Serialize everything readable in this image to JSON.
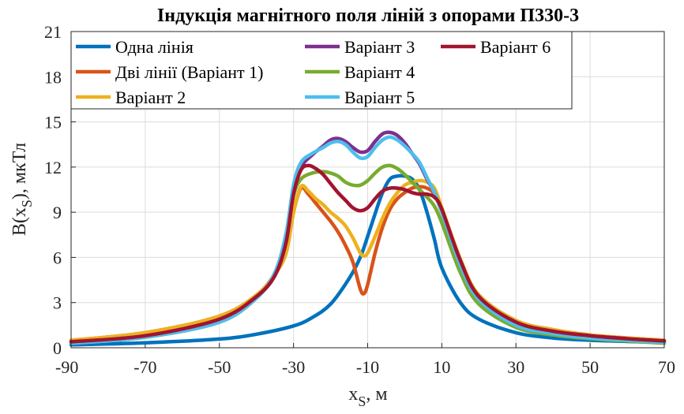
{
  "chart_data": {
    "type": "line",
    "title": "Індукція магнітного поля ліній з опорами П330-3",
    "xlabel": {
      "main": "x",
      "sub": "S",
      "rest": ", м"
    },
    "ylabel": {
      "main": "B(x",
      "sub": "S",
      "rest": "), мкТл"
    },
    "xlim": [
      -90,
      70
    ],
    "ylim": [
      0,
      21
    ],
    "xticks": [
      "-90",
      "-70",
      "-50",
      "-30",
      "-10",
      "10",
      "30",
      "50",
      "70"
    ],
    "yticks": [
      "0",
      "3",
      "6",
      "9",
      "12",
      "15",
      "18",
      "21"
    ],
    "grid": true,
    "legend_position": "top-left",
    "series": [
      {
        "name": "Одна лінія",
        "color": "#0072BD",
        "x": [
          -90,
          -70,
          -50,
          -40,
          -30,
          -25,
          -20,
          -15,
          -12,
          -10,
          -8,
          -6,
          -4,
          -2,
          0,
          2,
          4,
          6,
          8,
          10,
          15,
          20,
          30,
          40,
          50,
          60,
          70
        ],
        "y": [
          0.2,
          0.33,
          0.58,
          0.9,
          1.45,
          2.0,
          2.9,
          4.6,
          6.0,
          7.4,
          8.9,
          10.3,
          11.2,
          11.4,
          11.4,
          11.2,
          10.5,
          9.0,
          7.2,
          5.3,
          3.0,
          1.9,
          1.0,
          0.65,
          0.5,
          0.42,
          0.35
        ]
      },
      {
        "name": "Дві лінії (Варіант 1)",
        "color": "#D95319",
        "x": [
          -90,
          -70,
          -50,
          -40,
          -35,
          -32,
          -30,
          -28,
          -26,
          -24,
          -22,
          -20,
          -18,
          -16,
          -14,
          -12,
          -11,
          -10,
          -8,
          -6,
          -4,
          -2,
          0,
          2,
          4,
          6,
          8,
          10,
          15,
          20,
          30,
          40,
          50,
          60,
          70
        ],
        "y": [
          0.5,
          1.0,
          2.1,
          3.5,
          4.9,
          6.3,
          9.0,
          10.6,
          10.2,
          9.6,
          9.0,
          8.4,
          7.7,
          6.8,
          5.7,
          3.9,
          3.6,
          4.2,
          6.3,
          8.0,
          9.2,
          9.9,
          10.3,
          10.6,
          10.7,
          10.6,
          10.2,
          9.0,
          5.8,
          3.5,
          1.8,
          1.2,
          0.85,
          0.65,
          0.5
        ]
      },
      {
        "name": "Варіант 2",
        "color": "#EDB120",
        "x": [
          -90,
          -70,
          -50,
          -40,
          -35,
          -32,
          -30,
          -28,
          -26,
          -24,
          -22,
          -20,
          -18,
          -16,
          -14,
          -12,
          -11,
          -10,
          -8,
          -6,
          -4,
          -2,
          0,
          2,
          4,
          6,
          8,
          10,
          15,
          20,
          30,
          40,
          50,
          60,
          70
        ],
        "y": [
          0.5,
          1.0,
          2.1,
          3.5,
          4.9,
          6.3,
          9.0,
          10.7,
          10.4,
          9.9,
          9.5,
          9.0,
          8.6,
          8.1,
          7.3,
          6.3,
          6.1,
          6.3,
          7.4,
          8.6,
          9.6,
          10.3,
          10.8,
          11.0,
          11.1,
          11.0,
          10.6,
          9.3,
          5.9,
          3.5,
          1.8,
          1.2,
          0.85,
          0.65,
          0.5
        ]
      },
      {
        "name": "Варіант 3",
        "color": "#7E2F8E",
        "x": [
          -90,
          -70,
          -50,
          -40,
          -35,
          -32,
          -30,
          -28,
          -25,
          -22,
          -20,
          -18,
          -16,
          -14,
          -12,
          -10,
          -8,
          -6,
          -4,
          -2,
          0,
          2,
          4,
          6,
          8,
          10,
          15,
          20,
          30,
          40,
          50,
          60,
          70
        ],
        "y": [
          0.3,
          0.7,
          1.7,
          3.3,
          5.0,
          7.5,
          10.5,
          12.0,
          12.8,
          13.4,
          13.8,
          13.9,
          13.7,
          13.3,
          13.0,
          13.1,
          13.7,
          14.2,
          14.3,
          14.1,
          13.6,
          12.9,
          12.2,
          11.2,
          10.3,
          9.0,
          5.5,
          3.2,
          1.5,
          0.95,
          0.65,
          0.5,
          0.35
        ]
      },
      {
        "name": "Варіант 4",
        "color": "#77AC30",
        "x": [
          -90,
          -70,
          -50,
          -40,
          -35,
          -32,
          -30,
          -28,
          -25,
          -22,
          -20,
          -18,
          -16,
          -14,
          -12,
          -10,
          -8,
          -6,
          -4,
          -2,
          0,
          2,
          4,
          6,
          8,
          10,
          15,
          20,
          30,
          40,
          50,
          60,
          70
        ],
        "y": [
          0.3,
          0.7,
          1.7,
          3.3,
          5.0,
          7.3,
          10.1,
          11.2,
          11.6,
          11.7,
          11.6,
          11.4,
          11.0,
          10.8,
          10.8,
          11.1,
          11.6,
          12.0,
          12.1,
          11.9,
          11.5,
          11.0,
          10.5,
          10.0,
          9.4,
          8.3,
          5.0,
          2.9,
          1.35,
          0.85,
          0.6,
          0.45,
          0.3
        ]
      },
      {
        "name": "Варіант 5",
        "color": "#4DBEEE",
        "x": [
          -90,
          -70,
          -50,
          -40,
          -35,
          -32,
          -30,
          -28,
          -25,
          -22,
          -20,
          -18,
          -16,
          -14,
          -12,
          -10,
          -8,
          -6,
          -4,
          -2,
          0,
          2,
          4,
          6,
          8,
          10,
          15,
          20,
          30,
          40,
          50,
          60,
          70
        ],
        "y": [
          0.3,
          0.7,
          1.7,
          3.3,
          5.0,
          7.6,
          10.8,
          12.3,
          12.9,
          13.3,
          13.6,
          13.7,
          13.5,
          13.0,
          12.6,
          12.7,
          13.3,
          13.8,
          14.0,
          13.8,
          13.4,
          12.9,
          12.3,
          11.3,
          10.3,
          9.0,
          5.5,
          3.2,
          1.5,
          0.95,
          0.65,
          0.5,
          0.35
        ]
      },
      {
        "name": "Варіант 6",
        "color": "#A2142F",
        "x": [
          -90,
          -70,
          -50,
          -40,
          -35,
          -32,
          -30,
          -28,
          -26,
          -24,
          -22,
          -20,
          -18,
          -16,
          -14,
          -12,
          -10,
          -8,
          -6,
          -4,
          -2,
          0,
          2,
          4,
          6,
          8,
          10,
          15,
          20,
          30,
          40,
          50,
          60,
          70
        ],
        "y": [
          0.4,
          0.8,
          1.9,
          3.4,
          4.8,
          7.0,
          10.2,
          11.8,
          12.1,
          11.9,
          11.5,
          10.9,
          10.3,
          9.8,
          9.3,
          9.1,
          9.3,
          9.9,
          10.4,
          10.6,
          10.6,
          10.5,
          10.3,
          10.2,
          10.2,
          10.0,
          9.2,
          5.8,
          3.4,
          1.7,
          1.1,
          0.8,
          0.6,
          0.45
        ]
      }
    ],
    "legend_columns": [
      [
        "Одна лінія",
        "Дві лінії (Варіант 1)",
        "Варіант 2"
      ],
      [
        "Варіант 3",
        "Варіант 4",
        "Варіант 5"
      ],
      [
        "Варіант 6"
      ]
    ]
  }
}
